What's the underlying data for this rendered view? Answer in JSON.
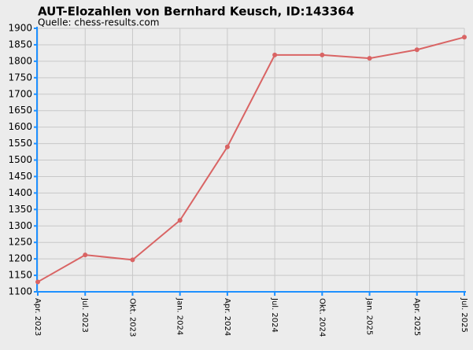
{
  "chart_data": {
    "type": "line",
    "title": "AUT-Elozahlen von Bernhard Keusch, ID:143364",
    "subtitle": "Quelle: chess-results.com",
    "categories": [
      "Apr. 2023",
      "Jul. 2023",
      "Okt. 2023",
      "Jan. 2024",
      "Apr. 2024",
      "Jul. 2024",
      "Okt. 2024",
      "Jan. 2025",
      "Apr. 2025",
      "Jul. 2025"
    ],
    "series": [
      {
        "name": "Elo",
        "color": "#d96464",
        "values": [
          1130,
          1212,
          1197,
          1317,
          1540,
          1819,
          1819,
          1809,
          1835,
          1873
        ]
      }
    ],
    "ylim": [
      1100,
      1900
    ],
    "yticks": [
      1100,
      1150,
      1200,
      1250,
      1300,
      1350,
      1400,
      1450,
      1500,
      1550,
      1600,
      1650,
      1700,
      1750,
      1800,
      1850,
      1900
    ],
    "grid": true
  }
}
